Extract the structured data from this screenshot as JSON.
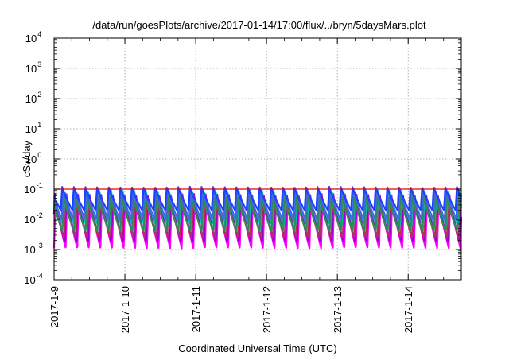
{
  "chart_data": {
    "type": "line",
    "title": "/data/run/goesPlots/archive/2017-01-14/17:00/flux/../bryn/5daysMars.plot",
    "xlabel": "Coordinated Universal Time (UTC)",
    "ylabel": "cSv/day",
    "yscale": "log",
    "ylim": [
      0.0001,
      10000
    ],
    "y_ticks": [
      {
        "value": 0.0001,
        "base": "10",
        "exp": "-4"
      },
      {
        "value": 0.001,
        "base": "10",
        "exp": "-3"
      },
      {
        "value": 0.01,
        "base": "10",
        "exp": "-2"
      },
      {
        "value": 0.1,
        "base": "10",
        "exp": "-1"
      },
      {
        "value": 1,
        "base": "10",
        "exp": "0"
      },
      {
        "value": 10,
        "base": "10",
        "exp": "1"
      },
      {
        "value": 100,
        "base": "10",
        "exp": "2"
      },
      {
        "value": 1000,
        "base": "10",
        "exp": "3"
      },
      {
        "value": 10000,
        "base": "10",
        "exp": "4"
      }
    ],
    "xlim": [
      "2017-01-09T00:00",
      "2017-01-14T18:00"
    ],
    "x_ticks": [
      {
        "value": "2017-01-09T00:00",
        "label": "2017-1-9"
      },
      {
        "value": "2017-01-10T00:00",
        "label": "2017-1-10"
      },
      {
        "value": "2017-01-11T00:00",
        "label": "2017-1-11"
      },
      {
        "value": "2017-01-12T00:00",
        "label": "2017-1-12"
      },
      {
        "value": "2017-01-13T00:00",
        "label": "2017-1-13"
      },
      {
        "value": "2017-01-14T00:00",
        "label": "2017-1-14"
      }
    ],
    "grid": true,
    "reference_line": {
      "y": 0.1,
      "color": "#e8000b"
    },
    "oscillation": {
      "cycles_per_day": 6.1,
      "envelope_min": 0.0009,
      "envelope_max": 0.13
    },
    "series": [
      {
        "color": "#ff00ff",
        "peak": 0.05,
        "trough": 0.0011
      },
      {
        "color": "#9400d3",
        "peak": 0.07,
        "trough": 0.0018
      },
      {
        "color": "#b03060",
        "peak": 0.045,
        "trough": 0.0025
      },
      {
        "color": "#00c0c0",
        "peak": 0.09,
        "trough": 0.006
      },
      {
        "color": "#2e8b57",
        "peak": 0.06,
        "trough": 0.004
      },
      {
        "color": "#4169e1",
        "peak": 0.11,
        "trough": 0.01
      },
      {
        "color": "#1e40ff",
        "peak": 0.12,
        "trough": 0.02
      }
    ]
  }
}
